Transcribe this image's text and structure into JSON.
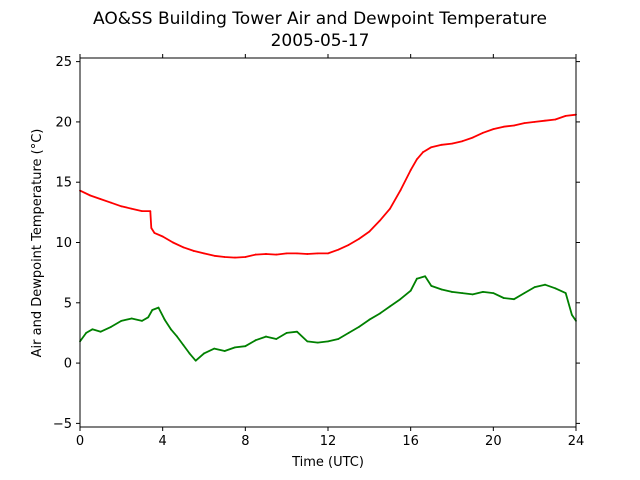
{
  "chart_data": {
    "type": "line",
    "title": "AO&SS Building Tower Air and Dewpoint Temperature",
    "subtitle": "2005-05-17",
    "xlabel": "Time (UTC)",
    "ylabel": "Air and Dewpoint Temperature (°C)",
    "xlim": [
      0,
      24
    ],
    "ylim": [
      -5.3,
      25.3
    ],
    "xticks": [
      0,
      4,
      8,
      12,
      16,
      20,
      24
    ],
    "yticks": [
      -5,
      0,
      5,
      10,
      15,
      20,
      25
    ],
    "grid": false,
    "legend": "none",
    "series": [
      {
        "color": "#ff0000",
        "x": [
          0,
          0.5,
          1,
          1.5,
          2,
          2.5,
          3,
          3.4,
          3.45,
          3.6,
          4,
          4.5,
          5,
          5.5,
          6,
          6.5,
          7,
          7.5,
          8,
          8.5,
          9,
          9.5,
          10,
          10.5,
          11,
          11.5,
          12,
          12.5,
          13,
          13.5,
          14,
          14.5,
          15,
          15.5,
          16,
          16.3,
          16.6,
          17,
          17.5,
          18,
          18.5,
          19,
          19.5,
          20,
          20.5,
          21,
          21.5,
          22,
          22.5,
          23,
          23.5,
          24
        ],
        "values": [
          14.3,
          13.9,
          13.6,
          13.3,
          13.0,
          12.8,
          12.6,
          12.6,
          11.2,
          10.8,
          10.5,
          10.0,
          9.6,
          9.3,
          9.1,
          8.9,
          8.8,
          8.75,
          8.8,
          9.0,
          9.05,
          9.0,
          9.1,
          9.1,
          9.05,
          9.1,
          9.1,
          9.4,
          9.8,
          10.3,
          10.9,
          11.8,
          12.8,
          14.3,
          16.0,
          16.9,
          17.5,
          17.9,
          18.1,
          18.2,
          18.4,
          18.7,
          19.1,
          19.4,
          19.6,
          19.7,
          19.9,
          20.0,
          20.1,
          20.2,
          20.5,
          20.6
        ]
      },
      {
        "color": "#008000",
        "x": [
          0,
          0.3,
          0.6,
          1,
          1.5,
          2,
          2.5,
          3,
          3.3,
          3.5,
          3.8,
          4.1,
          4.4,
          4.7,
          5,
          5.3,
          5.6,
          6,
          6.5,
          7,
          7.5,
          8,
          8.5,
          9,
          9.5,
          10,
          10.5,
          11,
          11.5,
          12,
          12.5,
          13,
          13.5,
          14,
          14.5,
          15,
          15.5,
          16,
          16.3,
          16.7,
          17,
          17.5,
          18,
          18.5,
          19,
          19.5,
          20,
          20.5,
          21,
          21.5,
          22,
          22.5,
          23,
          23.5,
          23.8,
          24
        ],
        "values": [
          1.8,
          2.5,
          2.8,
          2.6,
          3.0,
          3.5,
          3.7,
          3.5,
          3.8,
          4.4,
          4.6,
          3.6,
          2.8,
          2.2,
          1.5,
          0.8,
          0.2,
          0.8,
          1.2,
          1.0,
          1.3,
          1.4,
          1.9,
          2.2,
          2.0,
          2.5,
          2.6,
          1.8,
          1.7,
          1.8,
          2.0,
          2.5,
          3.0,
          3.6,
          4.1,
          4.7,
          5.3,
          6.0,
          7.0,
          7.2,
          6.4,
          6.1,
          5.9,
          5.8,
          5.7,
          5.9,
          5.8,
          5.4,
          5.3,
          5.8,
          6.3,
          6.5,
          6.2,
          5.8,
          4.0,
          3.5
        ]
      }
    ]
  }
}
